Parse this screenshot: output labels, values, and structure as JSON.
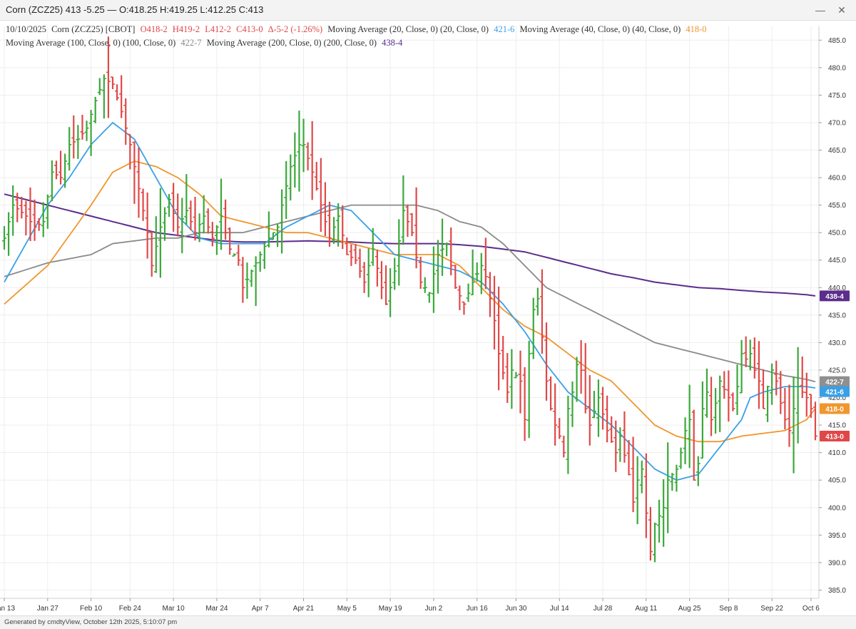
{
  "window": {
    "title": "Corn (ZCZ25) 413 -5.25 — O:418.25 H:419.25 L:412.25 C:413",
    "minimize_icon": "minimize-icon",
    "close_icon": "close-icon"
  },
  "legend": {
    "date": "10/10/2025",
    "symbol": "Corn (ZCZ25) [CBOT]",
    "open": "O418-2",
    "high": "H419-2",
    "low": "L412-2",
    "close": "C413-0",
    "change": "∆-5-2 (-1.26%)",
    "ma20_label": "Moving Average (20, Close, 0)  (20, Close, 0)",
    "ma20_value": "421-6",
    "ma40_label": "Moving Average (40, Close, 0)  (40, Close, 0)",
    "ma40_value": "418-0",
    "ma100_label": "Moving Average (100, Close, 0)  (100, Close, 0)",
    "ma100_value": "422-7",
    "ma200_label": "Moving Average (200, Close, 0)  (200, Close, 0)",
    "ma200_value": "438-4"
  },
  "footer": {
    "text": "Generated by cmdtyView, October 12th 2025, 5:10:07 pm"
  },
  "chart_data": {
    "type": "ohlc",
    "grid": true,
    "ylim": [
      383.5,
      487.5
    ],
    "yticks": [
      385,
      390,
      395,
      400,
      405,
      410,
      415,
      420,
      425,
      430,
      435,
      440,
      445,
      450,
      455,
      460,
      465,
      470,
      475,
      480,
      485
    ],
    "ytick_labels": [
      "385.0",
      "390.0",
      "395.0",
      "400.0",
      "405.0",
      "410.0",
      "415.0",
      "420.0",
      "425.0",
      "430.0",
      "435.0",
      "440.0",
      "445.0",
      "450.0",
      "455.0",
      "460.0",
      "465.0",
      "470.0",
      "475.0",
      "480.0",
      "485.0"
    ],
    "xtick_labels": [
      "Jan 13",
      "Jan 27",
      "Feb 10",
      "Feb 24",
      "Mar 10",
      "Mar 24",
      "Apr 7",
      "Apr 21",
      "May 5",
      "May 19",
      "Jun 2",
      "Jun 16",
      "Jun 30",
      "Jul 14",
      "Jul 28",
      "Aug 11",
      "Aug 25",
      "Sep 8",
      "Sep 22",
      "Oct 6"
    ],
    "xtick_index": [
      0,
      10,
      20,
      29,
      39,
      49,
      59,
      69,
      79,
      89,
      99,
      109,
      118,
      128,
      138,
      148,
      158,
      167,
      177,
      186
    ],
    "colors": {
      "up": "#3aa83a",
      "down": "#e04848",
      "ma20": "#3aa0e6",
      "ma40": "#f0962e",
      "ma100": "#8a8a8a",
      "ma200": "#5b2d8c",
      "legend_text": "#333333"
    },
    "anchor_closes": [
      [
        0,
        449
      ],
      [
        2,
        455
      ],
      [
        5,
        453
      ],
      [
        7,
        451
      ],
      [
        9,
        452
      ],
      [
        11,
        461
      ],
      [
        13,
        460
      ],
      [
        15,
        466
      ],
      [
        17,
        467
      ],
      [
        19,
        469
      ],
      [
        21,
        474
      ],
      [
        23,
        478
      ],
      [
        25,
        477
      ],
      [
        27,
        472
      ],
      [
        29,
        466
      ],
      [
        31,
        458
      ],
      [
        33,
        450
      ],
      [
        34,
        444
      ],
      [
        36,
        451
      ],
      [
        38,
        456
      ],
      [
        40,
        451
      ],
      [
        42,
        454
      ],
      [
        44,
        450
      ],
      [
        46,
        453
      ],
      [
        48,
        449
      ],
      [
        50,
        453
      ],
      [
        52,
        447
      ],
      [
        54,
        445
      ],
      [
        55,
        440
      ],
      [
        57,
        443
      ],
      [
        59,
        446
      ],
      [
        61,
        449
      ],
      [
        63,
        451
      ],
      [
        64,
        455
      ],
      [
        66,
        462
      ],
      [
        68,
        466
      ],
      [
        69,
        466
      ],
      [
        71,
        461
      ],
      [
        73,
        455
      ],
      [
        75,
        449
      ],
      [
        77,
        453
      ],
      [
        79,
        446
      ],
      [
        81,
        445
      ],
      [
        83,
        441
      ],
      [
        85,
        447
      ],
      [
        87,
        440
      ],
      [
        88,
        437
      ],
      [
        90,
        443
      ],
      [
        92,
        454
      ],
      [
        94,
        450
      ],
      [
        96,
        441
      ],
      [
        98,
        439
      ],
      [
        100,
        446
      ],
      [
        102,
        448
      ],
      [
        104,
        440
      ],
      [
        106,
        437
      ],
      [
        108,
        441
      ],
      [
        110,
        444
      ],
      [
        111,
        442
      ],
      [
        113,
        434
      ],
      [
        114,
        428
      ],
      [
        116,
        421
      ],
      [
        117,
        425
      ],
      [
        119,
        423
      ],
      [
        120,
        416
      ],
      [
        121,
        428
      ],
      [
        122,
        436
      ],
      [
        123,
        438
      ],
      [
        124,
        431
      ],
      [
        125,
        423
      ],
      [
        126,
        418
      ],
      [
        127,
        415
      ],
      [
        128,
        413
      ],
      [
        129,
        410
      ],
      [
        130,
        418
      ],
      [
        131,
        421
      ],
      [
        132,
        426
      ],
      [
        133,
        425
      ],
      [
        134,
        418
      ],
      [
        135,
        415
      ],
      [
        137,
        420
      ],
      [
        139,
        414
      ],
      [
        141,
        410
      ],
      [
        142,
        413
      ],
      [
        144,
        406
      ],
      [
        145,
        401
      ],
      [
        146,
        405
      ],
      [
        147,
        407
      ],
      [
        148,
        399
      ],
      [
        149,
        392
      ],
      [
        150,
        397
      ],
      [
        152,
        400
      ],
      [
        153,
        405
      ],
      [
        155,
        407
      ],
      [
        156,
        410
      ],
      [
        157,
        414
      ],
      [
        158,
        416
      ],
      [
        159,
        405
      ],
      [
        160,
        408
      ],
      [
        161,
        418
      ],
      [
        162,
        421
      ],
      [
        163,
        416
      ],
      [
        164,
        419
      ],
      [
        165,
        423
      ],
      [
        167,
        420
      ],
      [
        168,
        418
      ],
      [
        169,
        422
      ],
      [
        170,
        428
      ],
      [
        171,
        427
      ],
      [
        172,
        428
      ],
      [
        173,
        425
      ],
      [
        174,
        423
      ],
      [
        175,
        418
      ],
      [
        176,
        422
      ],
      [
        177,
        425
      ],
      [
        178,
        423
      ],
      [
        179,
        419
      ],
      [
        180,
        416
      ],
      [
        181,
        414
      ],
      [
        182,
        418
      ],
      [
        183,
        422
      ],
      [
        184,
        421
      ],
      [
        185,
        420
      ],
      [
        186,
        418
      ],
      [
        187,
        413
      ]
    ],
    "ma_anchors": {
      "ma20": [
        [
          0,
          441
        ],
        [
          5,
          448
        ],
        [
          10,
          455
        ],
        [
          15,
          460
        ],
        [
          20,
          466
        ],
        [
          25,
          470
        ],
        [
          30,
          467
        ],
        [
          35,
          460
        ],
        [
          40,
          453
        ],
        [
          45,
          449
        ],
        [
          50,
          448
        ],
        [
          55,
          448
        ],
        [
          60,
          448
        ],
        [
          65,
          451
        ],
        [
          70,
          453
        ],
        [
          75,
          455
        ],
        [
          80,
          454
        ],
        [
          85,
          450
        ],
        [
          90,
          446
        ],
        [
          95,
          445
        ],
        [
          100,
          444
        ],
        [
          105,
          443
        ],
        [
          110,
          441
        ],
        [
          115,
          437
        ],
        [
          120,
          432
        ],
        [
          125,
          426
        ],
        [
          130,
          421
        ],
        [
          135,
          418
        ],
        [
          140,
          415
        ],
        [
          145,
          411
        ],
        [
          150,
          407
        ],
        [
          155,
          405
        ],
        [
          160,
          406
        ],
        [
          165,
          411
        ],
        [
          170,
          416
        ],
        [
          172,
          420
        ],
        [
          175,
          421
        ],
        [
          180,
          422
        ],
        [
          185,
          422
        ],
        [
          187,
          421.75
        ]
      ],
      "ma40": [
        [
          0,
          437
        ],
        [
          10,
          444
        ],
        [
          20,
          455
        ],
        [
          25,
          461
        ],
        [
          30,
          463
        ],
        [
          35,
          462
        ],
        [
          40,
          460
        ],
        [
          45,
          457
        ],
        [
          50,
          453
        ],
        [
          55,
          452
        ],
        [
          60,
          451
        ],
        [
          65,
          450
        ],
        [
          70,
          450
        ],
        [
          75,
          449
        ],
        [
          80,
          448
        ],
        [
          85,
          447
        ],
        [
          90,
          446
        ],
        [
          95,
          446
        ],
        [
          100,
          446
        ],
        [
          105,
          444
        ],
        [
          110,
          440
        ],
        [
          115,
          436
        ],
        [
          120,
          433
        ],
        [
          125,
          431
        ],
        [
          130,
          428
        ],
        [
          135,
          425
        ],
        [
          140,
          423
        ],
        [
          145,
          419
        ],
        [
          150,
          415
        ],
        [
          155,
          413
        ],
        [
          160,
          412
        ],
        [
          165,
          412
        ],
        [
          170,
          413
        ],
        [
          175,
          413.5
        ],
        [
          180,
          414
        ],
        [
          185,
          416
        ],
        [
          187,
          418
        ]
      ],
      "ma100": [
        [
          0,
          442
        ],
        [
          10,
          444.5
        ],
        [
          20,
          446
        ],
        [
          25,
          448
        ],
        [
          30,
          448.5
        ],
        [
          35,
          449
        ],
        [
          40,
          449
        ],
        [
          45,
          450
        ],
        [
          50,
          450
        ],
        [
          55,
          450
        ],
        [
          60,
          451
        ],
        [
          65,
          452
        ],
        [
          70,
          453
        ],
        [
          75,
          454
        ],
        [
          80,
          455
        ],
        [
          85,
          455
        ],
        [
          90,
          455
        ],
        [
          95,
          455
        ],
        [
          100,
          454
        ],
        [
          105,
          452
        ],
        [
          110,
          451
        ],
        [
          115,
          448
        ],
        [
          120,
          444
        ],
        [
          125,
          440
        ],
        [
          130,
          438
        ],
        [
          135,
          436
        ],
        [
          140,
          434
        ],
        [
          145,
          432
        ],
        [
          150,
          430
        ],
        [
          155,
          429
        ],
        [
          160,
          428
        ],
        [
          165,
          427
        ],
        [
          170,
          426
        ],
        [
          175,
          425
        ],
        [
          180,
          424
        ],
        [
          185,
          423.3
        ],
        [
          187,
          422.9
        ]
      ],
      "ma200": [
        [
          0,
          457
        ],
        [
          10,
          455
        ],
        [
          20,
          453
        ],
        [
          25,
          452
        ],
        [
          30,
          451
        ],
        [
          35,
          450
        ],
        [
          40,
          449.5
        ],
        [
          45,
          449
        ],
        [
          50,
          448.5
        ],
        [
          55,
          448.3
        ],
        [
          60,
          448.3
        ],
        [
          65,
          448.4
        ],
        [
          70,
          448.5
        ],
        [
          75,
          448.4
        ],
        [
          80,
          448.3
        ],
        [
          85,
          448.1
        ],
        [
          90,
          448
        ],
        [
          95,
          448
        ],
        [
          100,
          448
        ],
        [
          105,
          447.8
        ],
        [
          110,
          447.5
        ],
        [
          115,
          447
        ],
        [
          120,
          446.5
        ],
        [
          125,
          445.5
        ],
        [
          130,
          444.5
        ],
        [
          135,
          443.5
        ],
        [
          140,
          442.5
        ],
        [
          145,
          441.8
        ],
        [
          150,
          441
        ],
        [
          155,
          440.5
        ],
        [
          160,
          440
        ],
        [
          165,
          439.8
        ],
        [
          170,
          439.5
        ],
        [
          175,
          439.2
        ],
        [
          180,
          439
        ],
        [
          185,
          438.7
        ],
        [
          187,
          438.5
        ]
      ]
    },
    "last_close": 413.0,
    "markers": {
      "ma100": {
        "label": "422-7",
        "value": 422.9
      },
      "ma20": {
        "label": "421-6",
        "value": 421.75
      },
      "ma40": {
        "label": "418-0",
        "value": 418.0
      },
      "ma200": {
        "label": "438-4",
        "value": 438.5
      },
      "close": {
        "label": "413-0",
        "value": 413.0
      }
    }
  }
}
